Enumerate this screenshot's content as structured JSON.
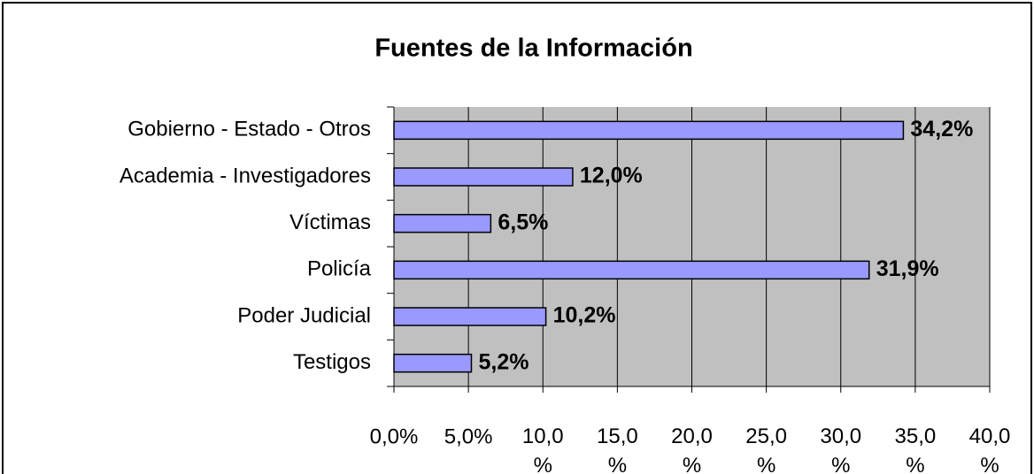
{
  "chart_data": {
    "type": "bar",
    "orientation": "horizontal",
    "title": "Fuentes de la Información",
    "categories": [
      "Gobierno - Estado - Otros",
      "Academia - Investigadores",
      "Víctimas",
      "Policía",
      "Poder Judicial",
      "Testigos"
    ],
    "values": [
      34.2,
      12.0,
      6.5,
      31.9,
      10.2,
      5.2
    ],
    "value_labels": [
      "34,2%",
      "12,0%",
      "6,5%",
      "31,9%",
      "10,2%",
      "5,2%"
    ],
    "color": "#9999ff",
    "xlim": [
      0,
      40
    ],
    "xticks": [
      {
        "value": 0,
        "label": "0,0%"
      },
      {
        "value": 5,
        "label": "5,0%"
      },
      {
        "value": 10,
        "label": "10,0%"
      },
      {
        "value": 15,
        "label": "15,0%"
      },
      {
        "value": 20,
        "label": "20,0%"
      },
      {
        "value": 25,
        "label": "25,0%"
      },
      {
        "value": 30,
        "label": "30,0%"
      },
      {
        "value": 35,
        "label": "35,0%"
      },
      {
        "value": 40,
        "label": "40,0%"
      }
    ],
    "grid": true
  }
}
